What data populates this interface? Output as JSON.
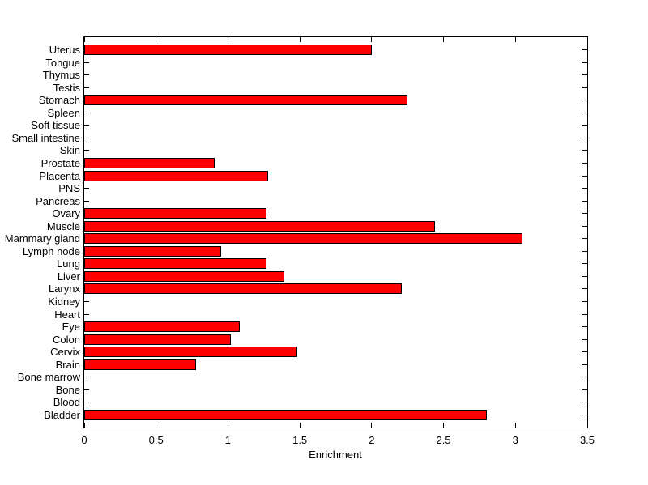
{
  "figure": {
    "background_color": "#ffffff",
    "axis_color": "#000000",
    "text_color": "#000000"
  },
  "chart_data": {
    "type": "bar",
    "orientation": "horizontal",
    "title": "",
    "xlabel": "Enrichment",
    "ylabel": "",
    "xlim": [
      0,
      3.5
    ],
    "xtick_labels": [
      "0",
      "0.5",
      "1",
      "1.5",
      "2",
      "2.5",
      "3",
      "3.5"
    ],
    "xticks": [
      0,
      0.5,
      1,
      1.5,
      2,
      2.5,
      3,
      3.5
    ],
    "grid": false,
    "legend": null,
    "bar_color": "#ff0000",
    "bar_border_color": "#000000",
    "categories_order": "top_to_bottom",
    "categories": [
      "Uterus",
      "Tongue",
      "Thymus",
      "Testis",
      "Stomach",
      "Spleen",
      "Soft tissue",
      "Small intestine",
      "Skin",
      "Prostate",
      "Placenta",
      "PNS",
      "Pancreas",
      "Ovary",
      "Muscle",
      "Mammary gland",
      "Lymph node",
      "Lung",
      "Liver",
      "Larynx",
      "Kidney",
      "Heart",
      "Eye",
      "Colon",
      "Cervix",
      "Brain",
      "Bone marrow",
      "Bone",
      "Blood",
      "Bladder"
    ],
    "values": [
      2.0,
      0,
      0,
      0,
      2.25,
      0,
      0,
      0,
      0,
      0.91,
      1.28,
      0,
      0,
      1.27,
      2.44,
      3.05,
      0.95,
      1.27,
      1.39,
      2.21,
      0,
      0,
      1.08,
      1.02,
      1.48,
      0.78,
      0,
      0,
      0,
      2.8
    ]
  }
}
